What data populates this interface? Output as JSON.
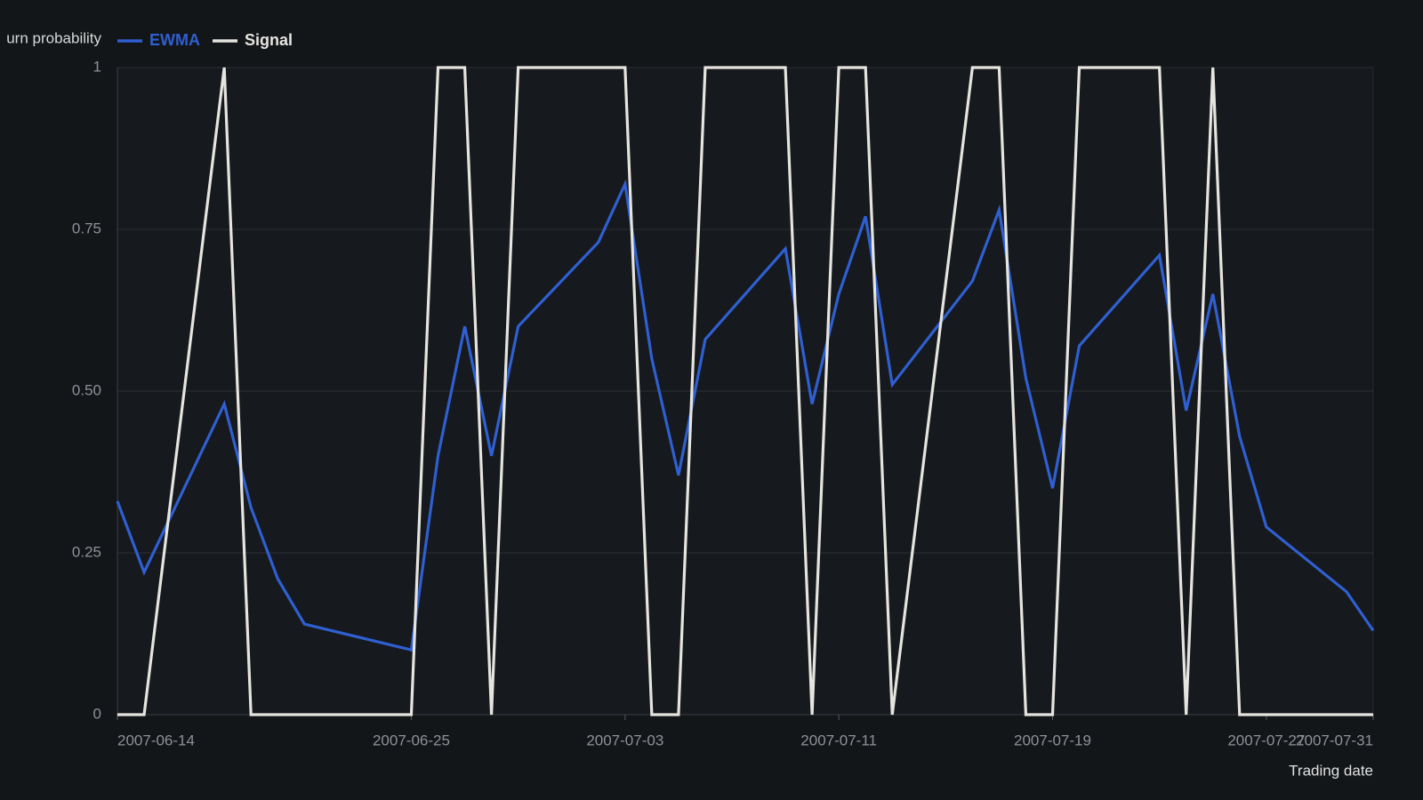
{
  "chart_data": {
    "type": "line",
    "y_label": "urn probability",
    "x_label": "Trading date",
    "x": [
      "2007-06-14",
      "2007-06-15",
      "2007-06-18",
      "2007-06-19",
      "2007-06-20",
      "2007-06-21",
      "2007-06-25",
      "2007-06-26",
      "2007-06-27",
      "2007-06-28",
      "2007-06-29",
      "2007-07-02",
      "2007-07-03",
      "2007-07-04",
      "2007-07-05",
      "2007-07-06",
      "2007-07-09",
      "2007-07-10",
      "2007-07-11",
      "2007-07-12",
      "2007-07-13",
      "2007-07-16",
      "2007-07-17",
      "2007-07-18",
      "2007-07-19",
      "2007-07-20",
      "2007-07-23",
      "2007-07-24",
      "2007-07-25",
      "2007-07-26",
      "2007-07-27",
      "2007-07-30",
      "2007-07-31"
    ],
    "series": [
      {
        "name": "EWMA",
        "color": "#2f5fd0",
        "values": [
          0.33,
          0.22,
          0.48,
          0.32,
          0.21,
          0.14,
          0.1,
          0.4,
          0.6,
          0.4,
          0.6,
          0.73,
          0.82,
          0.55,
          0.37,
          0.58,
          0.72,
          0.48,
          0.65,
          0.77,
          0.51,
          0.67,
          0.78,
          0.52,
          0.35,
          0.57,
          0.71,
          0.47,
          0.65,
          0.43,
          0.29,
          0.19,
          0.13
        ]
      },
      {
        "name": "Signal",
        "color": "#e6e4df",
        "values": [
          0,
          0,
          1,
          0,
          0,
          0,
          0,
          1,
          1,
          0,
          1,
          1,
          1,
          0,
          0,
          1,
          1,
          0,
          1,
          1,
          0,
          1,
          1,
          0,
          0,
          1,
          1,
          0,
          1,
          0,
          0,
          0,
          0
        ]
      }
    ],
    "xlim": [
      "2007-06-14",
      "2007-07-31"
    ],
    "xticks": [
      "2007-06-14",
      "2007-06-25",
      "2007-07-03",
      "2007-07-11",
      "2007-07-19",
      "2007-07-27",
      "2007-07-31"
    ],
    "ylim": [
      0,
      1
    ],
    "yticks": [
      0,
      0.25,
      {
        "value": 0.5,
        "label": "0.50"
      },
      0.75,
      1
    ],
    "grid": true
  }
}
